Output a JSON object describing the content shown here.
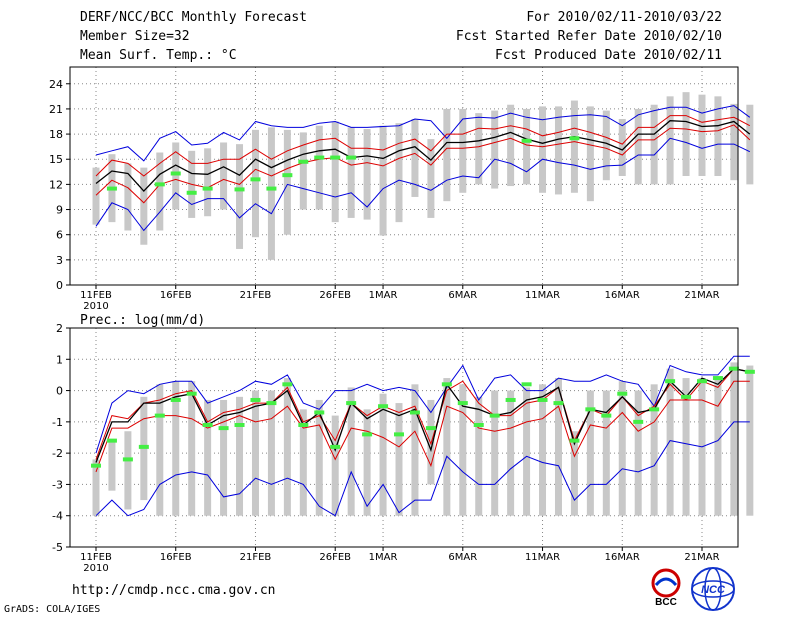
{
  "header": {
    "left": [
      "DERF/NCC/BCC Monthly Forecast",
      "Member Size=32",
      "Mean Surf. Temp.: °C"
    ],
    "right": [
      "For 2010/02/11-2010/03/22",
      "Fcst Started Refer Date 2010/02/10",
      "Fcst Produced Date 2010/02/11"
    ]
  },
  "footer": {
    "url": "http://cmdp.ncc.cma.gov.cn",
    "credit": "GrADS: COLA/IGES",
    "logo1_text": "BCC",
    "logo2_text": "NCC"
  },
  "colors": {
    "max": "#0000dd",
    "spread": "#dd0000",
    "mean": "#000000",
    "box": "#c8c8c8",
    "obs": "#44ee44"
  },
  "chart_data": [
    {
      "type": "line",
      "title": "Mean Surf. Temp.: °C",
      "ylim": [
        0,
        26
      ],
      "yticks": [
        0,
        3,
        6,
        9,
        12,
        15,
        18,
        21,
        24
      ],
      "xticks": [
        {
          "day": 0,
          "label": "11FEB"
        },
        {
          "day": 5,
          "label": "16FEB"
        },
        {
          "day": 10,
          "label": "21FEB"
        },
        {
          "day": 15,
          "label": "26FEB"
        },
        {
          "day": 18,
          "label": "1MAR"
        },
        {
          "day": 23,
          "label": "6MAR"
        },
        {
          "day": 28,
          "label": "11MAR"
        },
        {
          "day": 33,
          "label": "16MAR"
        },
        {
          "day": 38,
          "label": "21MAR"
        }
      ],
      "year_label": "2010",
      "series": [
        {
          "name": "max",
          "values": [
            15.5,
            16,
            16.5,
            14.8,
            17.5,
            18.3,
            16.7,
            16.9,
            18.2,
            17.3,
            19.5,
            19,
            18.8,
            18.8,
            19.3,
            19.5,
            18.8,
            18.8,
            18.9,
            19,
            19.8,
            19.6,
            17.5,
            19.8,
            20,
            19.9,
            20.5,
            20,
            19.7,
            20,
            20.2,
            20.3,
            20.1,
            19,
            20.3,
            20.8,
            21.2,
            21.2,
            20.5,
            21,
            21.4,
            20
          ]
        },
        {
          "name": "upper",
          "values": [
            13,
            14.9,
            14.5,
            13,
            14.5,
            15.9,
            14.5,
            14.5,
            15,
            15,
            16.2,
            15,
            16,
            16.7,
            17.3,
            17.5,
            16.3,
            16.3,
            16.1,
            16.9,
            17.4,
            16,
            18,
            18,
            18.7,
            18.6,
            19,
            18.6,
            17.8,
            18.2,
            18.7,
            18.2,
            17.6,
            16.8,
            18.8,
            18.8,
            20.2,
            20.2,
            19.4,
            19.7,
            20,
            19
          ]
        },
        {
          "name": "mean",
          "values": [
            12.1,
            13.6,
            13.3,
            11.2,
            13.2,
            14.3,
            13.3,
            13.2,
            14.1,
            13.1,
            15,
            14,
            14.9,
            15.6,
            16,
            16.2,
            15.2,
            15.4,
            15.1,
            16,
            16.5,
            14.9,
            17,
            17,
            17.2,
            17.6,
            18.2,
            17.4,
            16.9,
            17.4,
            17.7,
            17.3,
            16.9,
            16.1,
            18,
            18,
            19.6,
            19.5,
            18.9,
            19,
            19.5,
            18
          ]
        },
        {
          "name": "lower",
          "values": [
            10.7,
            12.5,
            11.6,
            9.8,
            12,
            12.6,
            12,
            11.6,
            12.6,
            12,
            13.8,
            13,
            13.9,
            14.6,
            15,
            15.2,
            14.3,
            14.6,
            14.2,
            15.1,
            15.7,
            14.3,
            16.3,
            16.3,
            16.5,
            17,
            17.5,
            16.7,
            16.5,
            16.8,
            17.1,
            16.7,
            16.3,
            15.5,
            17.3,
            17.3,
            18.7,
            18.6,
            18.3,
            18.4,
            19.1,
            17.3
          ]
        },
        {
          "name": "min",
          "values": [
            7,
            9.8,
            9,
            6.5,
            8.7,
            11,
            9.6,
            10.3,
            10.3,
            8,
            9.7,
            8.5,
            12,
            11.5,
            11,
            10.5,
            11,
            9.3,
            11.5,
            12.5,
            12,
            11.3,
            12.5,
            13,
            12.8,
            15,
            14.5,
            13.5,
            15,
            14.6,
            14.3,
            13.8,
            14.2,
            14.3,
            15.5,
            15.5,
            17.5,
            17,
            16.3,
            16.8,
            16.8,
            15.9
          ]
        },
        {
          "name": "box_top",
          "values": [
            14,
            15.6,
            14.5,
            14,
            15.8,
            17,
            16,
            16.3,
            17,
            16.8,
            18.5,
            18.8,
            18.5,
            18.2,
            19,
            19.5,
            18.8,
            18.6,
            19,
            19.3,
            19.8,
            17.4,
            21,
            21,
            20.5,
            20.8,
            21.5,
            21,
            21.3,
            21.3,
            22,
            21.3,
            20.8,
            19.8,
            21,
            21.5,
            22.5,
            23,
            22.7,
            22.5,
            21.6,
            21.5
          ]
        },
        {
          "name": "box_bottom",
          "values": [
            7.2,
            7.5,
            6.5,
            4.8,
            6.5,
            9,
            8,
            8.2,
            9,
            4.3,
            5.7,
            3,
            6,
            9,
            9,
            7.5,
            8,
            7.8,
            5.9,
            7.5,
            10.5,
            8,
            10,
            11,
            12,
            11.5,
            11.8,
            12,
            11,
            10.8,
            11,
            10,
            12.5,
            13,
            12,
            12,
            12,
            13,
            13,
            13,
            12.5,
            12
          ]
        },
        {
          "name": "obs",
          "values": [
            null,
            11.5,
            null,
            null,
            12,
            13.3,
            11,
            11.5,
            null,
            11.4,
            12.6,
            11.5,
            13.1,
            14.7,
            15.2,
            15.2,
            15.2,
            null,
            null,
            null,
            null,
            null,
            null,
            null,
            null,
            null,
            null,
            17.2,
            null,
            null,
            17.5,
            null,
            null,
            null,
            null,
            null,
            null,
            null,
            null,
            null,
            null,
            null
          ]
        }
      ]
    },
    {
      "type": "line",
      "title": "Prec.: log(mm/d)",
      "ylim": [
        -5,
        2
      ],
      "yticks": [
        -5,
        -4,
        -3,
        -2,
        -1,
        0,
        1,
        2
      ],
      "xticks": [
        {
          "day": 0,
          "label": "11FEB"
        },
        {
          "day": 5,
          "label": "16FEB"
        },
        {
          "day": 10,
          "label": "21FEB"
        },
        {
          "day": 15,
          "label": "26FEB"
        },
        {
          "day": 18,
          "label": "1MAR"
        },
        {
          "day": 23,
          "label": "6MAR"
        },
        {
          "day": 28,
          "label": "11MAR"
        },
        {
          "day": 33,
          "label": "16MAR"
        },
        {
          "day": 38,
          "label": "21MAR"
        }
      ],
      "year_label": "2010",
      "series": [
        {
          "name": "max",
          "values": [
            -2,
            -0.4,
            0,
            -0.1,
            0.2,
            0.3,
            0.3,
            -0.4,
            -0.2,
            0,
            0.3,
            0.2,
            0.5,
            -0.4,
            -0.6,
            0,
            0,
            0.2,
            0,
            0.1,
            0,
            -0.7,
            0.1,
            0.8,
            -0.3,
            0.4,
            0.5,
            0,
            0,
            0.4,
            0.3,
            0.3,
            0.5,
            0.3,
            0.2,
            -0.5,
            0.8,
            0.6,
            0.5,
            0.5,
            1.1,
            1.1
          ]
        },
        {
          "name": "upper",
          "values": [
            -2.2,
            -0.8,
            -0.9,
            -0.4,
            -0.3,
            -0.1,
            0,
            -1,
            -0.7,
            -0.6,
            -0.4,
            -0.4,
            0.1,
            -1,
            -0.8,
            -1.6,
            -0.4,
            -0.8,
            -0.5,
            -0.7,
            -0.5,
            -1.7,
            0,
            0.3,
            -0.4,
            -0.8,
            -0.8,
            -0.4,
            -0.3,
            0.1,
            -1.6,
            -0.6,
            -0.8,
            -0.2,
            -0.8,
            -0.5,
            0.2,
            -0.3,
            0.3,
            0.1,
            0.7,
            0.6
          ]
        },
        {
          "name": "mean",
          "values": [
            -2.3,
            -1,
            -1,
            -0.4,
            -0.4,
            -0.2,
            -0.1,
            -1.1,
            -0.8,
            -0.7,
            -0.5,
            -0.4,
            0,
            -1.1,
            -0.7,
            -1.9,
            -0.4,
            -0.9,
            -0.6,
            -0.8,
            -0.6,
            -1.9,
            0.2,
            -0.5,
            -0.6,
            -0.8,
            -0.7,
            -0.3,
            -0.2,
            0.1,
            -1.7,
            -0.6,
            -0.7,
            -0.2,
            -0.7,
            -0.6,
            0.3,
            -0.2,
            0.4,
            0.2,
            0.7,
            0.6
          ]
        },
        {
          "name": "lower",
          "values": [
            -2.6,
            -1.2,
            -1.2,
            -0.9,
            -0.8,
            -0.8,
            -0.9,
            -1.2,
            -1,
            -0.8,
            -1,
            -0.9,
            -0.5,
            -1.2,
            -1.1,
            -2.2,
            -1.2,
            -1.3,
            -1.5,
            -1.8,
            -1.3,
            -2.4,
            -0.5,
            -0.7,
            -1.2,
            -1.3,
            -1.2,
            -1,
            -0.9,
            -0.5,
            -2.1,
            -1.1,
            -1.2,
            -0.7,
            -1.3,
            -1,
            -0.3,
            -0.3,
            -0.3,
            -0.5,
            0.3,
            0.3
          ]
        },
        {
          "name": "min",
          "values": [
            -4,
            -3.5,
            -4,
            -3.8,
            -3,
            -2.7,
            -2.6,
            -2.7,
            -3.4,
            -3.3,
            -2.8,
            -3,
            -2.8,
            -3,
            -3.7,
            -4,
            -2.6,
            -3.7,
            -3,
            -3.9,
            -3.5,
            -3.5,
            -2.1,
            -2.6,
            -3,
            -3,
            -2.5,
            -2.1,
            -2.3,
            -2.4,
            -3.5,
            -3,
            -3,
            -2.5,
            -2.6,
            -2.4,
            -1.6,
            -1.7,
            -1.8,
            -1.6,
            -1,
            -1
          ]
        },
        {
          "name": "box_top",
          "values": [
            -2.2,
            -1.6,
            -1.3,
            -0.2,
            0.2,
            0.3,
            0.3,
            -0.3,
            -0.3,
            -0.2,
            0,
            0,
            0.4,
            -0.6,
            -0.3,
            -0.8,
            0.1,
            -0.6,
            -0.1,
            -0.4,
            0.2,
            -0.3,
            0.4,
            0.2,
            -0.2,
            0,
            0,
            0.1,
            0.2,
            0.4,
            -1.3,
            0,
            0,
            0.3,
            0,
            0.2,
            0.7,
            0.4,
            0.4,
            0.4,
            0.9,
            0.8
          ]
        },
        {
          "name": "box_bottom",
          "values": [
            -4,
            -3.2,
            -3.8,
            -3.5,
            -4,
            -4,
            -4,
            -4,
            -4,
            -4,
            -4,
            -4,
            -4,
            -4,
            -4,
            -4,
            -4,
            -4,
            -4,
            -4,
            -4,
            -3,
            -4,
            -4,
            -4,
            -4,
            -4,
            -4,
            -4,
            -4,
            -4,
            -4,
            -4,
            -4,
            -4,
            -4,
            -4,
            -4,
            -4,
            -4,
            -4,
            -4
          ]
        },
        {
          "name": "obs",
          "values": [
            -2.4,
            -1.6,
            -2.2,
            -1.8,
            -0.8,
            -0.3,
            -0.1,
            -1.1,
            -1.2,
            -1.1,
            -0.3,
            -0.4,
            0.2,
            -1.1,
            -0.7,
            -1.8,
            -0.4,
            -1.4,
            -0.5,
            -1.4,
            -0.7,
            -1.2,
            0.2,
            -0.4,
            -1.1,
            -0.8,
            -0.3,
            0.2,
            -0.3,
            -0.4,
            -1.6,
            -0.6,
            -0.8,
            -0.1,
            -1,
            -0.6,
            0.3,
            -0.2,
            0.3,
            0.4,
            0.7,
            0.6
          ]
        }
      ]
    }
  ]
}
